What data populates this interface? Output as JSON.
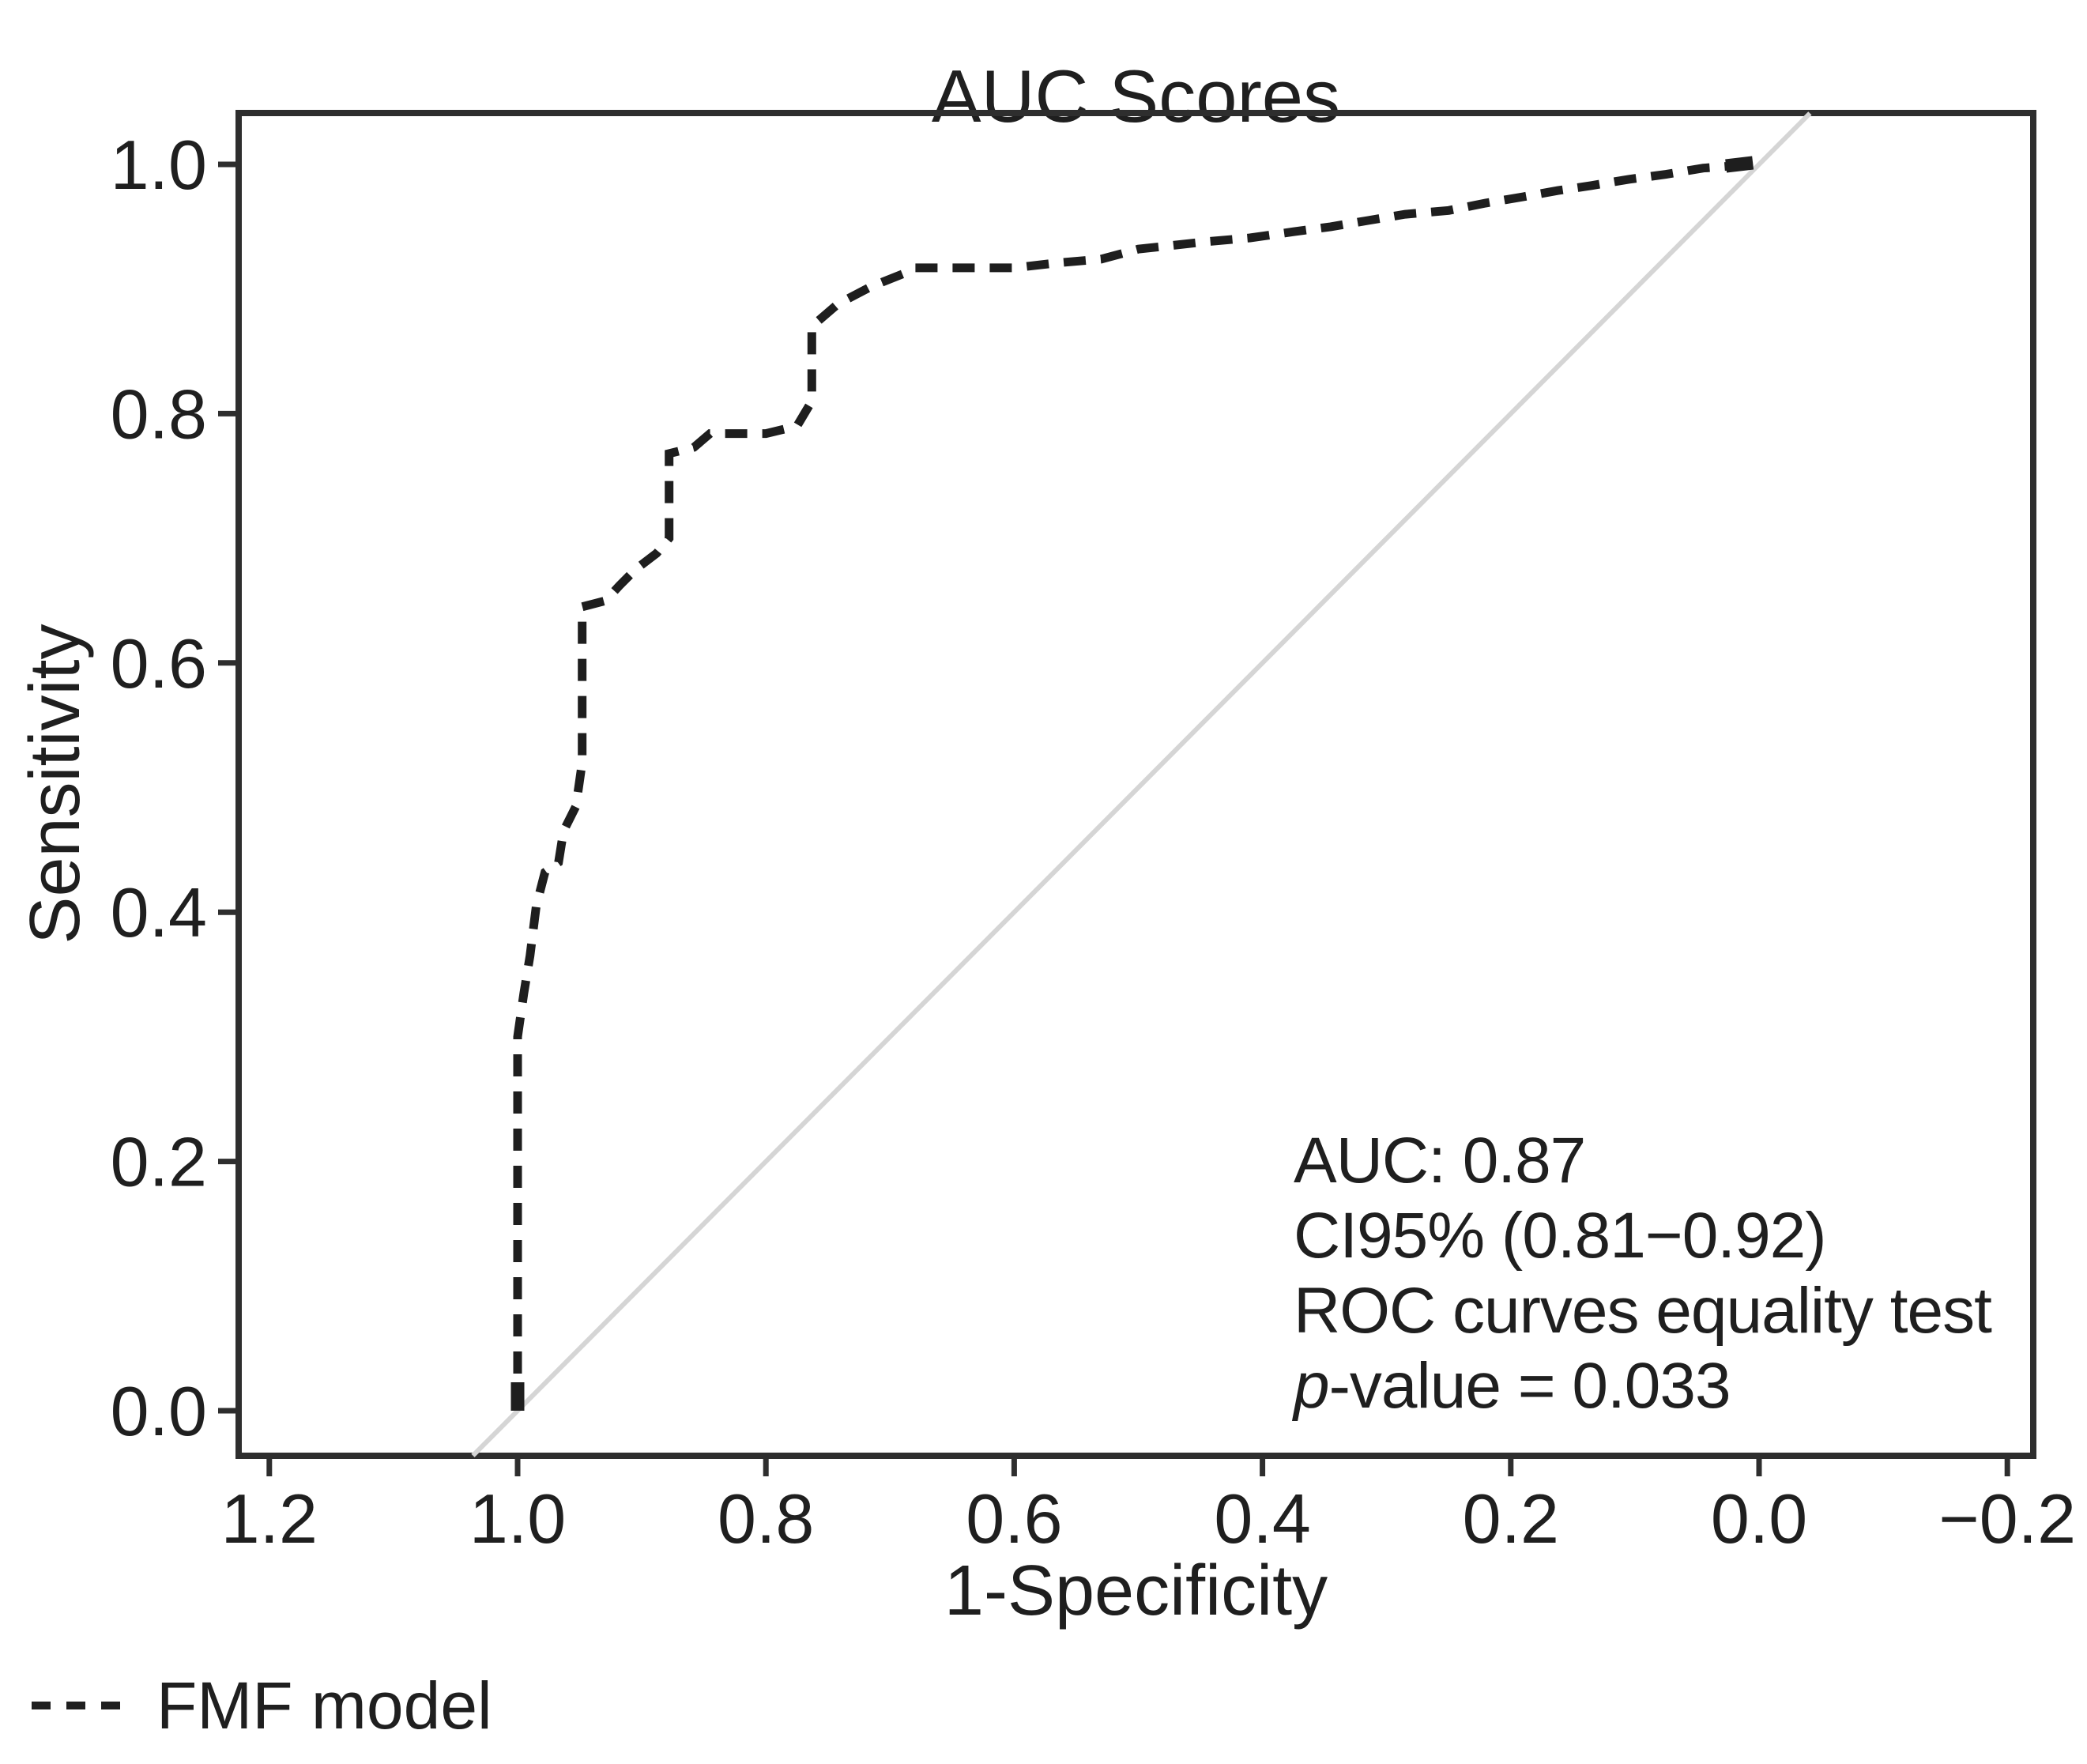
{
  "chart_data": {
    "type": "line",
    "subtype": "roc-curve",
    "title": "AUC Scores",
    "xlabel": "1-Specificity",
    "ylabel": "Sensitivity",
    "x_axis_reversed": true,
    "xlim": [
      1.225,
      -0.221
    ],
    "ylim": [
      -0.036,
      1.041
    ],
    "grid": false,
    "x_ticks": {
      "values": [
        1.2,
        1.0,
        0.8,
        0.6,
        0.4,
        0.2,
        0.0,
        -0.2
      ],
      "labels": [
        "1.2",
        "1.0",
        "0.8",
        "0.6",
        "0.4",
        "0.2",
        "0.0",
        "−0.2"
      ]
    },
    "y_ticks": {
      "values": [
        1.0,
        0.8,
        0.6,
        0.4,
        0.2,
        0.0
      ],
      "labels": [
        "1.0",
        "0.8",
        "0.6",
        "0.4",
        "0.2",
        "0.0"
      ]
    },
    "series": [
      {
        "name": "FMF model",
        "style": "dashed",
        "color": "#1e1e1e",
        "points": [
          [
            1.0,
            0.0
          ],
          [
            1.0,
            0.3
          ],
          [
            0.995,
            0.335
          ],
          [
            0.99,
            0.365
          ],
          [
            0.985,
            0.405
          ],
          [
            0.978,
            0.432
          ],
          [
            0.967,
            0.44
          ],
          [
            0.963,
            0.465
          ],
          [
            0.953,
            0.485
          ],
          [
            0.948,
            0.52
          ],
          [
            0.948,
            0.645
          ],
          [
            0.929,
            0.65
          ],
          [
            0.918,
            0.662
          ],
          [
            0.905,
            0.675
          ],
          [
            0.888,
            0.688
          ],
          [
            0.878,
            0.7
          ],
          [
            0.878,
            0.768
          ],
          [
            0.858,
            0.773
          ],
          [
            0.845,
            0.784
          ],
          [
            0.8,
            0.784
          ],
          [
            0.775,
            0.79
          ],
          [
            0.763,
            0.81
          ],
          [
            0.763,
            0.87
          ],
          [
            0.742,
            0.888
          ],
          [
            0.715,
            0.902
          ],
          [
            0.69,
            0.912
          ],
          [
            0.683,
            0.917
          ],
          [
            0.6,
            0.917
          ],
          [
            0.565,
            0.921
          ],
          [
            0.53,
            0.924
          ],
          [
            0.5,
            0.932
          ],
          [
            0.445,
            0.938
          ],
          [
            0.41,
            0.941
          ],
          [
            0.375,
            0.946
          ],
          [
            0.345,
            0.95
          ],
          [
            0.315,
            0.955
          ],
          [
            0.285,
            0.96
          ],
          [
            0.25,
            0.963
          ],
          [
            0.22,
            0.969
          ],
          [
            0.19,
            0.974
          ],
          [
            0.162,
            0.979
          ],
          [
            0.135,
            0.983
          ],
          [
            0.105,
            0.988
          ],
          [
            0.075,
            0.992
          ],
          [
            0.045,
            0.997
          ],
          [
            0.005,
            1.0
          ]
        ]
      }
    ],
    "reference_line": {
      "meaning": "chance diagonal (sensitivity = specificity)",
      "from": [
        1.036,
        -0.036
      ],
      "to": [
        -0.041,
        1.041
      ],
      "color": "#d5d5d5"
    },
    "annotation": {
      "lines": [
        "AUC: 0.87",
        "CI95% (0.81−0.92)",
        "ROC curves equality test",
        "p-value = 0.033"
      ],
      "auc_line": "AUC: 0.87",
      "ci_line": "CI95% (0.81−0.92)",
      "test_line": "ROC curves equality test",
      "p_prefix": "p",
      "p_rest": "-value = 0.033"
    },
    "legend": {
      "position": "bottom-left",
      "entries": [
        {
          "label": "FMF model",
          "line_style": "dashed",
          "color": "#1f1f1f"
        }
      ]
    },
    "colors": {
      "curve": "#1e1e1e",
      "reference_line": "#d5d5d5",
      "frame": "#2e2e2e",
      "text": "#1f1f1f",
      "background": "#ffffff"
    }
  }
}
